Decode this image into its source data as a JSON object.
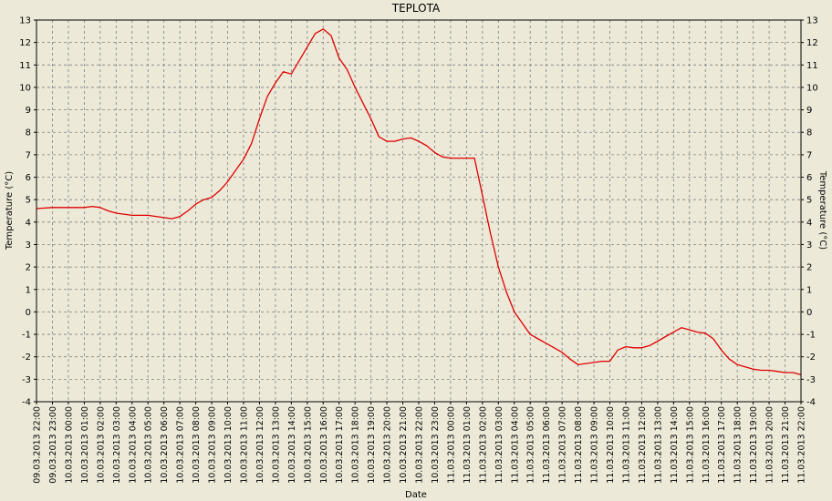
{
  "chart_data": {
    "type": "line",
    "title": "TEPLOTA",
    "xlabel": "Date",
    "ylabel": "Temperature (°C)",
    "ylabel_right": "Temperature (°C)",
    "ylim": [
      -4,
      13
    ],
    "yticks": [
      13,
      12,
      11,
      10,
      9,
      8,
      7,
      6,
      5,
      4,
      3,
      2,
      1,
      0,
      -1,
      -2,
      -3,
      -4
    ],
    "grid": true,
    "grid_style": "dashed",
    "x_ticks": [
      "09.03.2013 22:00",
      "09.03.2013 23:00",
      "10.03.2013 00:00",
      "10.03.2013 01:00",
      "10.03.2013 02:00",
      "10.03.2013 03:00",
      "10.03.2013 04:00",
      "10.03.2013 05:00",
      "10.03.2013 06:00",
      "10.03.2013 07:00",
      "10.03.2013 08:00",
      "10.03.2013 09:00",
      "10.03.2013 10:00",
      "10.03.2013 11:00",
      "10.03.2013 12:00",
      "10.03.2013 13:00",
      "10.03.2013 14:00",
      "10.03.2013 15:00",
      "10.03.2013 16:00",
      "10.03.2013 17:00",
      "10.03.2013 18:00",
      "10.03.2013 19:00",
      "10.03.2013 20:00",
      "10.03.2013 21:00",
      "10.03.2013 22:00",
      "10.03.2013 23:00",
      "11.03.2013 00:00",
      "11.03.2013 01:00",
      "11.03.2013 02:00",
      "11.03.2013 03:00",
      "11.03.2013 04:00",
      "11.03.2013 05:00",
      "11.03.2013 06:00",
      "11.03.2013 07:00",
      "11.03.2013 08:00",
      "11.03.2013 09:00",
      "11.03.2013 10:00",
      "11.03.2013 11:00",
      "11.03.2013 12:00",
      "11.03.2013 13:00",
      "11.03.2013 14:00",
      "11.03.2013 15:00",
      "11.03.2013 16:00",
      "11.03.2013 17:00",
      "11.03.2013 18:00",
      "11.03.2013 19:00",
      "11.03.2013 20:00",
      "11.03.2013 21:00",
      "11.03.2013 22:00"
    ],
    "series": [
      {
        "color": "#E00000",
        "points": [
          [
            "09.03.2013 22:00",
            4.6
          ],
          [
            "09.03.2013 23:00",
            4.65
          ],
          [
            "10.03.2013 00:00",
            4.65
          ],
          [
            "10.03.2013 01:00",
            4.65
          ],
          [
            "10.03.2013 01:30",
            4.7
          ],
          [
            "10.03.2013 02:00",
            4.65
          ],
          [
            "10.03.2013 02:30",
            4.5
          ],
          [
            "10.03.2013 03:00",
            4.4
          ],
          [
            "10.03.2013 04:00",
            4.3
          ],
          [
            "10.03.2013 05:00",
            4.3
          ],
          [
            "10.03.2013 06:00",
            4.2
          ],
          [
            "10.03.2013 06:30",
            4.15
          ],
          [
            "10.03.2013 07:00",
            4.25
          ],
          [
            "10.03.2013 07:30",
            4.5
          ],
          [
            "10.03.2013 08:00",
            4.8
          ],
          [
            "10.03.2013 08:30",
            5.0
          ],
          [
            "10.03.2013 09:00",
            5.1
          ],
          [
            "10.03.2013 09:30",
            5.4
          ],
          [
            "10.03.2013 10:00",
            5.8
          ],
          [
            "10.03.2013 10:30",
            6.3
          ],
          [
            "10.03.2013 11:00",
            6.8
          ],
          [
            "10.03.2013 11:30",
            7.5
          ],
          [
            "10.03.2013 12:00",
            8.6
          ],
          [
            "10.03.2013 12:30",
            9.6
          ],
          [
            "10.03.2013 13:00",
            10.2
          ],
          [
            "10.03.2013 13:30",
            10.7
          ],
          [
            "10.03.2013 14:00",
            10.6
          ],
          [
            "10.03.2013 14:30",
            11.2
          ],
          [
            "10.03.2013 15:00",
            11.8
          ],
          [
            "10.03.2013 15:30",
            12.4
          ],
          [
            "10.03.2013 16:00",
            12.6
          ],
          [
            "10.03.2013 16:30",
            12.3
          ],
          [
            "10.03.2013 17:00",
            11.3
          ],
          [
            "10.03.2013 17:30",
            10.8
          ],
          [
            "10.03.2013 18:00",
            10.0
          ],
          [
            "10.03.2013 19:00",
            8.6
          ],
          [
            "10.03.2013 19:30",
            7.8
          ],
          [
            "10.03.2013 20:00",
            7.6
          ],
          [
            "10.03.2013 20:30",
            7.6
          ],
          [
            "10.03.2013 21:00",
            7.7
          ],
          [
            "10.03.2013 21:30",
            7.75
          ],
          [
            "10.03.2013 22:00",
            7.6
          ],
          [
            "10.03.2013 22:30",
            7.4
          ],
          [
            "10.03.2013 23:00",
            7.1
          ],
          [
            "10.03.2013 23:30",
            6.9
          ],
          [
            "11.03.2013 00:00",
            6.85
          ],
          [
            "11.03.2013 00:30",
            6.85
          ],
          [
            "11.03.2013 01:00",
            6.85
          ],
          [
            "11.03.2013 01:30",
            6.85
          ],
          [
            "11.03.2013 02:00",
            5.2
          ],
          [
            "11.03.2013 02:30",
            3.5
          ],
          [
            "11.03.2013 03:00",
            2.0
          ],
          [
            "11.03.2013 03:30",
            0.9
          ],
          [
            "11.03.2013 04:00",
            0.0
          ],
          [
            "11.03.2013 04:30",
            -0.5
          ],
          [
            "11.03.2013 05:00",
            -1.0
          ],
          [
            "11.03.2013 05:30",
            -1.2
          ],
          [
            "11.03.2013 06:00",
            -1.4
          ],
          [
            "11.03.2013 06:30",
            -1.6
          ],
          [
            "11.03.2013 07:00",
            -1.8
          ],
          [
            "11.03.2013 07:30",
            -2.1
          ],
          [
            "11.03.2013 08:00",
            -2.35
          ],
          [
            "11.03.2013 08:30",
            -2.3
          ],
          [
            "11.03.2013 09:00",
            -2.25
          ],
          [
            "11.03.2013 09:30",
            -2.2
          ],
          [
            "11.03.2013 10:00",
            -2.2
          ],
          [
            "11.03.2013 10:30",
            -1.7
          ],
          [
            "11.03.2013 11:00",
            -1.55
          ],
          [
            "11.03.2013 11:30",
            -1.6
          ],
          [
            "11.03.2013 12:00",
            -1.6
          ],
          [
            "11.03.2013 12:30",
            -1.5
          ],
          [
            "11.03.2013 13:00",
            -1.3
          ],
          [
            "11.03.2013 13:30",
            -1.1
          ],
          [
            "11.03.2013 14:00",
            -0.9
          ],
          [
            "11.03.2013 14:30",
            -0.7
          ],
          [
            "11.03.2013 15:00",
            -0.8
          ],
          [
            "11.03.2013 15:30",
            -0.9
          ],
          [
            "11.03.2013 16:00",
            -0.95
          ],
          [
            "11.03.2013 16:30",
            -1.2
          ],
          [
            "11.03.2013 17:00",
            -1.7
          ],
          [
            "11.03.2013 17:30",
            -2.1
          ],
          [
            "11.03.2013 18:00",
            -2.35
          ],
          [
            "11.03.2013 18:30",
            -2.45
          ],
          [
            "11.03.2013 19:00",
            -2.55
          ],
          [
            "11.03.2013 19:30",
            -2.6
          ],
          [
            "11.03.2013 20:00",
            -2.6
          ],
          [
            "11.03.2013 20:30",
            -2.65
          ],
          [
            "11.03.2013 21:00",
            -2.7
          ],
          [
            "11.03.2013 21:30",
            -2.7
          ],
          [
            "11.03.2013 22:00",
            -2.8
          ]
        ]
      }
    ]
  }
}
